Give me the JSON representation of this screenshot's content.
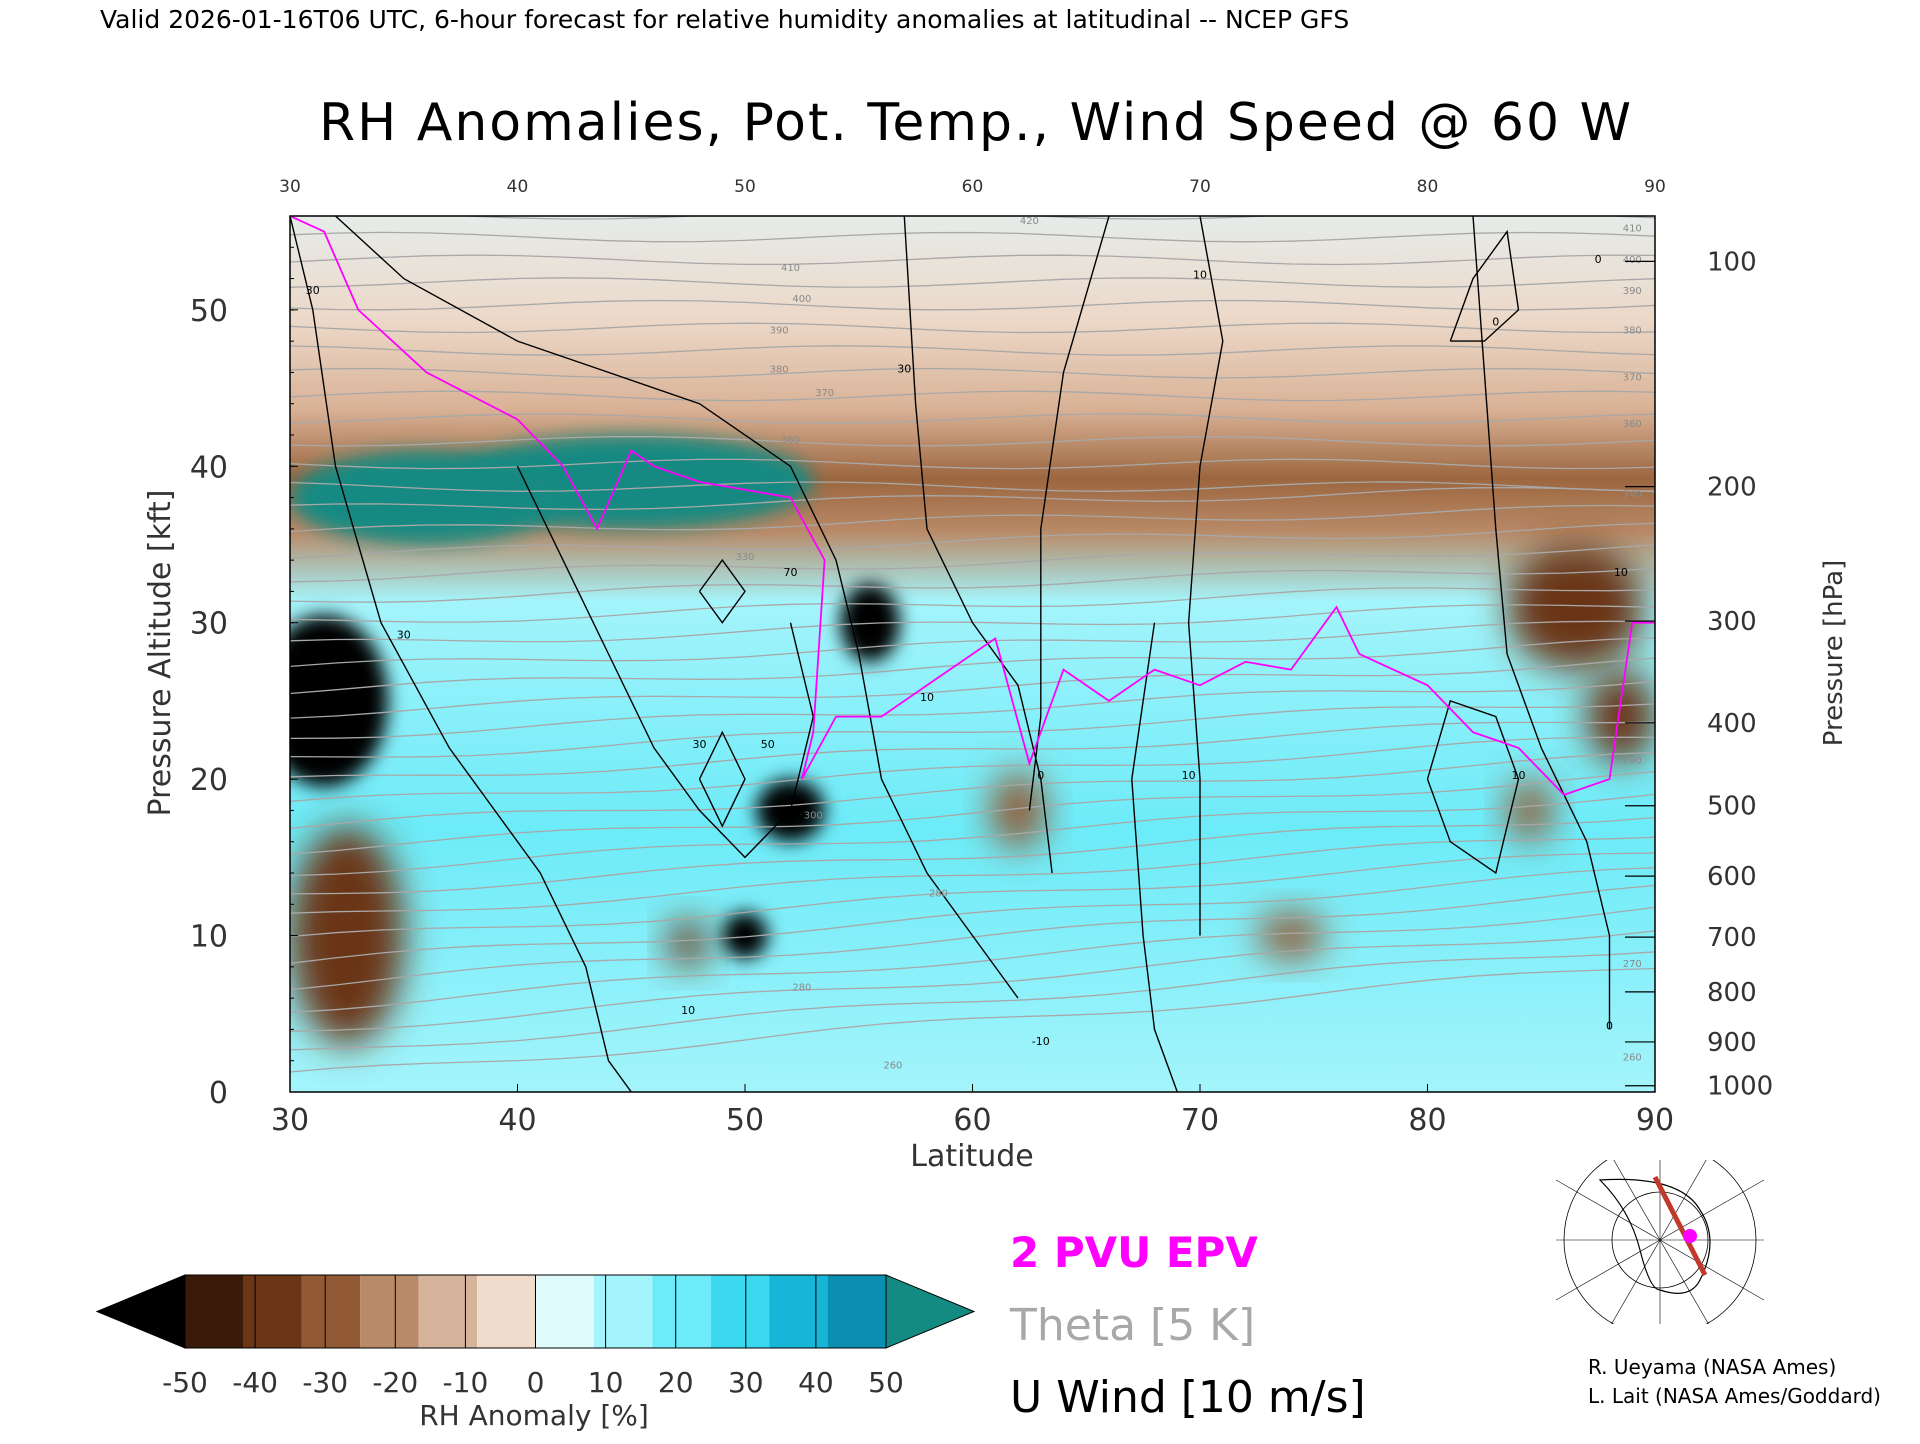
{
  "header_text": "Valid 2026-01-16T06 UTC, 6-hour forecast for relative humidity anomalies at latitudinal -- NCEP GFS",
  "chart_data": {
    "type": "heatmap",
    "title": "RH Anomalies, Pot. Temp., Wind Speed @ 60 W",
    "xlabel": "Latitude",
    "ylabel_left": "Pressure Altitude [kft]",
    "ylabel_right": "Pressure [hPa]",
    "xlim": [
      30,
      90
    ],
    "ylim": [
      0,
      56
    ],
    "x_ticks": [
      30,
      40,
      50,
      60,
      70,
      80,
      90
    ],
    "y_ticks": [
      0,
      10,
      20,
      30,
      40,
      50
    ],
    "pressure_ticks": [
      {
        "hpa": 100,
        "kft": 53.1
      },
      {
        "hpa": 200,
        "kft": 38.7
      },
      {
        "hpa": 300,
        "kft": 30.1
      },
      {
        "hpa": 400,
        "kft": 23.6
      },
      {
        "hpa": 500,
        "kft": 18.3
      },
      {
        "hpa": 600,
        "kft": 13.8
      },
      {
        "hpa": 700,
        "kft": 9.9
      },
      {
        "hpa": 800,
        "kft": 6.4
      },
      {
        "hpa": 900,
        "kft": 3.2
      },
      {
        "hpa": 1000,
        "kft": 0.4
      }
    ],
    "colorbar": {
      "label": "RH Anomaly [%]",
      "ticks": [
        -50,
        -40,
        -30,
        -20,
        -10,
        0,
        10,
        20,
        30,
        40,
        50
      ],
      "colors": [
        "#000000",
        "#3a1a08",
        "#6b3517",
        "#915a35",
        "#b98a68",
        "#d6b39b",
        "#f0dccd",
        "#e0fbfc",
        "#a4f4fb",
        "#6cebf8",
        "#3bd9f0",
        "#16b6d8",
        "#0a8fb2",
        "#138a82"
      ],
      "extend": "both"
    },
    "rh_anomaly_features": [
      {
        "lat": 31.5,
        "kft": 25,
        "value": -60,
        "rx": 2.8,
        "ry": 5.5
      },
      {
        "lat": 32.5,
        "kft": 10,
        "value": -40,
        "rx": 2.5,
        "ry": 7
      },
      {
        "lat": 45,
        "kft": 39,
        "value": 50,
        "rx": 8,
        "ry": 3
      },
      {
        "lat": 36,
        "kft": 38,
        "value": 50,
        "rx": 6,
        "ry": 3
      },
      {
        "lat": 52,
        "kft": 18,
        "value": -50,
        "rx": 1.5,
        "ry": 2
      },
      {
        "lat": 55.5,
        "kft": 30,
        "value": -60,
        "rx": 1.3,
        "ry": 2.5
      },
      {
        "lat": 50,
        "kft": 10,
        "value": -50,
        "rx": 1,
        "ry": 1.5
      },
      {
        "lat": 47.5,
        "kft": 9.5,
        "value": -40,
        "rx": 0.9,
        "ry": 1.5
      },
      {
        "lat": 62,
        "kft": 18,
        "value": -30,
        "rx": 1.2,
        "ry": 2.5
      },
      {
        "lat": 74,
        "kft": 10,
        "value": -30,
        "rx": 1.5,
        "ry": 1.5
      },
      {
        "lat": 86.5,
        "kft": 31,
        "value": -40,
        "rx": 3,
        "ry": 4
      },
      {
        "lat": 88.5,
        "kft": 24,
        "value": -40,
        "rx": 1.5,
        "ry": 3
      },
      {
        "lat": 84.5,
        "kft": 18,
        "value": -25,
        "rx": 1,
        "ry": 2
      }
    ],
    "series": [
      {
        "name": "2 PVU EPV",
        "color": "#ff00ff",
        "points": [
          [
            30,
            56
          ],
          [
            31.5,
            55
          ],
          [
            33,
            50
          ],
          [
            34.5,
            48
          ],
          [
            36,
            46
          ],
          [
            38,
            44.5
          ],
          [
            40,
            43
          ],
          [
            42,
            40
          ],
          [
            43.5,
            36
          ],
          [
            45,
            41
          ],
          [
            46,
            40
          ],
          [
            48,
            39
          ],
          [
            50,
            38.5
          ],
          [
            52,
            38
          ],
          [
            53.5,
            34
          ],
          [
            53,
            23
          ],
          [
            52.5,
            20
          ],
          [
            54,
            24
          ],
          [
            56,
            24
          ],
          [
            58,
            26
          ],
          [
            61,
            29
          ],
          [
            62.5,
            21
          ],
          [
            64,
            27
          ],
          [
            66,
            25
          ],
          [
            68,
            27
          ],
          [
            70,
            26
          ],
          [
            72,
            27.5
          ],
          [
            74,
            27
          ],
          [
            76,
            31
          ],
          [
            77,
            28
          ],
          [
            80,
            26
          ],
          [
            82,
            23
          ],
          [
            84,
            22
          ],
          [
            86,
            19
          ],
          [
            88,
            20
          ],
          [
            89,
            30
          ],
          [
            90,
            30
          ]
        ]
      },
      {
        "name": "U Wind [10 m/s]",
        "color": "#000000",
        "contour_labels": [
          {
            "text": "30",
            "lat": 31,
            "kft": 51
          },
          {
            "text": "30",
            "lat": 35,
            "kft": 29
          },
          {
            "text": "70",
            "lat": 52,
            "kft": 33
          },
          {
            "text": "30",
            "lat": 48,
            "kft": 22
          },
          {
            "text": "50",
            "lat": 51,
            "kft": 22
          },
          {
            "text": "30",
            "lat": 57,
            "kft": 46
          },
          {
            "text": "10",
            "lat": 58,
            "kft": 25
          },
          {
            "text": "0",
            "lat": 63,
            "kft": 20
          },
          {
            "text": "10",
            "lat": 69.5,
            "kft": 20
          },
          {
            "text": "10",
            "lat": 70,
            "kft": 52
          },
          {
            "text": "10",
            "lat": 84,
            "kft": 20
          },
          {
            "text": "0",
            "lat": 87.5,
            "kft": 53
          },
          {
            "text": "0",
            "lat": 83,
            "kft": 49
          },
          {
            "text": "10",
            "lat": 47.5,
            "kft": 5
          },
          {
            "text": "-10",
            "lat": 63,
            "kft": 3
          },
          {
            "text": "10",
            "lat": 88.5,
            "kft": 33
          },
          {
            "text": "0",
            "lat": 88,
            "kft": 4
          }
        ]
      },
      {
        "name": "Theta [5 K]",
        "color": "#a8a8a8",
        "contour_labels": [
          {
            "text": "420",
            "lat": 62.5,
            "kft": 55.5
          },
          {
            "text": "410",
            "lat": 52,
            "kft": 52.5
          },
          {
            "text": "400",
            "lat": 52.5,
            "kft": 50.5
          },
          {
            "text": "390",
            "lat": 51.5,
            "kft": 48.5
          },
          {
            "text": "380",
            "lat": 51.5,
            "kft": 46
          },
          {
            "text": "370",
            "lat": 53.5,
            "kft": 44.5
          },
          {
            "text": "360",
            "lat": 52,
            "kft": 41.5
          },
          {
            "text": "330",
            "lat": 50,
            "kft": 34
          },
          {
            "text": "300",
            "lat": 53,
            "kft": 17.5
          },
          {
            "text": "280",
            "lat": 58.5,
            "kft": 12.5
          },
          {
            "text": "280",
            "lat": 52.5,
            "kft": 6.5
          },
          {
            "text": "260",
            "lat": 56.5,
            "kft": 1.5
          },
          {
            "text": "410",
            "lat": 89,
            "kft": 55
          },
          {
            "text": "400",
            "lat": 89,
            "kft": 53
          },
          {
            "text": "390",
            "lat": 89,
            "kft": 51
          },
          {
            "text": "380",
            "lat": 89,
            "kft": 48.5
          },
          {
            "text": "370",
            "lat": 89,
            "kft": 45.5
          },
          {
            "text": "360",
            "lat": 89,
            "kft": 42.5
          },
          {
            "text": "340",
            "lat": 89,
            "kft": 38
          },
          {
            "text": "290",
            "lat": 89,
            "kft": 21
          },
          {
            "text": "270",
            "lat": 89,
            "kft": 8
          },
          {
            "text": "260",
            "lat": 89,
            "kft": 2
          }
        ]
      }
    ],
    "legend": [
      {
        "text": "2 PVU EPV",
        "color": "#ff00ff"
      },
      {
        "text": "Theta [5 K]",
        "color": "#a8a8a8"
      },
      {
        "text": "U Wind [10 m/s]",
        "color": "#000000"
      }
    ],
    "locator_map": {
      "description_icon": "north-polar-map-icon",
      "section_color": "#c0392b",
      "marker_color": "#ff00ff"
    }
  },
  "credits": {
    "line1": "R. Ueyama (NASA Ames)",
    "line2": "L. Lait (NASA Ames/Goddard)"
  }
}
